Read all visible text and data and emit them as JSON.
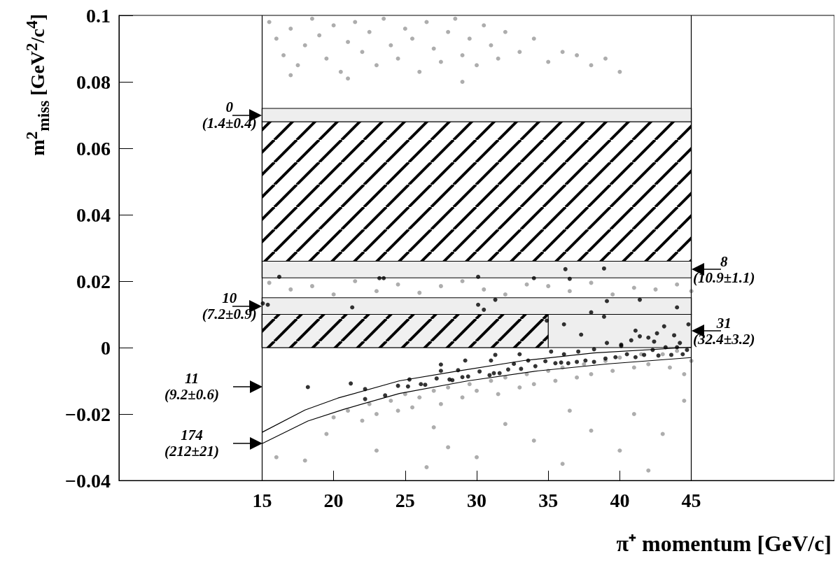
{
  "chart_data": {
    "type": "scatter",
    "xlabel": "π⁺ momentum [GeV/c]",
    "ylabel": "m$^{2}$$_{miss}$ [GeV$^{2}$/c$^{4}$]",
    "xlim": [
      5,
      55
    ],
    "xticks": [
      15,
      20,
      25,
      30,
      35,
      40,
      45
    ],
    "ylim": [
      -0.04,
      0.1
    ],
    "yticks": [
      {
        "value": -0.04,
        "label": "−0.04"
      },
      {
        "value": -0.02,
        "label": "−0.02"
      },
      0,
      0.02,
      0.04,
      0.06,
      0.08,
      0.1
    ],
    "grid": false,
    "series": [
      {
        "type": "scatter",
        "marker": "circle",
        "color": "#999999",
        "x": [
          15.5,
          16,
          16.5,
          17,
          17.5,
          18,
          18.5,
          19,
          19.5,
          20,
          20.5,
          21,
          21.5,
          22,
          22.5,
          23,
          23.5,
          24,
          24.5,
          25,
          25.5,
          26,
          26.5,
          27,
          27.5,
          28,
          28.5,
          29,
          29.5,
          30,
          30.5,
          31,
          31.5,
          32,
          33,
          34,
          35,
          36,
          37,
          38,
          39,
          40,
          17,
          21,
          29,
          15.5,
          17,
          18.5,
          20,
          21.5,
          23,
          24.5,
          26,
          27.5,
          29,
          30.5,
          32,
          33.5,
          35,
          36.5,
          38,
          39.5,
          41,
          42.5,
          44,
          45,
          20,
          21,
          22,
          22.5,
          23,
          24,
          24.5,
          25,
          25.5,
          26,
          27,
          27.5,
          28,
          29,
          29.5,
          30,
          31,
          31.5,
          32,
          33,
          33.5,
          34,
          35,
          35.5,
          36,
          37,
          37.5,
          38,
          39,
          39.5,
          40,
          41,
          41.5,
          42,
          43,
          43.5,
          44,
          44.5,
          45,
          16,
          18,
          19.5,
          23,
          26.5,
          28,
          30,
          32,
          34,
          36,
          38,
          40,
          41,
          42,
          43,
          44.5,
          27,
          36.5
        ],
        "values": [
          0.098,
          0.093,
          0.088,
          0.096,
          0.085,
          0.091,
          0.099,
          0.094,
          0.087,
          0.097,
          0.083,
          0.092,
          0.098,
          0.089,
          0.095,
          0.085,
          0.099,
          0.091,
          0.087,
          0.096,
          0.093,
          0.083,
          0.098,
          0.09,
          0.086,
          0.095,
          0.099,
          0.088,
          0.093,
          0.085,
          0.097,
          0.091,
          0.087,
          0.095,
          0.089,
          0.093,
          0.086,
          0.089,
          0.088,
          0.085,
          0.087,
          0.083,
          0.082,
          0.081,
          0.08,
          0.0195,
          0.0175,
          0.0185,
          0.016,
          0.02,
          0.017,
          0.019,
          0.0165,
          0.0185,
          0.02,
          0.0175,
          0.016,
          0.019,
          0.0185,
          0.017,
          0.0195,
          0.016,
          0.018,
          0.0175,
          0.019,
          0.017,
          -0.021,
          -0.019,
          -0.022,
          -0.017,
          -0.02,
          -0.016,
          -0.019,
          -0.014,
          -0.018,
          -0.015,
          -0.013,
          -0.017,
          -0.012,
          -0.015,
          -0.011,
          -0.013,
          -0.01,
          -0.014,
          -0.009,
          -0.012,
          -0.008,
          -0.011,
          -0.007,
          -0.01,
          -0.006,
          -0.009,
          -0.005,
          -0.008,
          -0.004,
          -0.007,
          -0.003,
          -0.006,
          -0.002,
          -0.005,
          -0.002,
          -0.006,
          -0.001,
          -0.008,
          -0.004,
          -0.033,
          -0.034,
          -0.026,
          -0.031,
          -0.036,
          -0.03,
          -0.033,
          -0.023,
          -0.028,
          -0.035,
          -0.025,
          -0.031,
          -0.02,
          -0.037,
          -0.026,
          -0.016,
          -0.024,
          -0.019
        ]
      },
      {
        "type": "scatter",
        "marker": "circle",
        "color": "#000000",
        "x": [
          16.2,
          23.2,
          23.5,
          30.1,
          34,
          36.2,
          36.5,
          38.9,
          15.05,
          15.4,
          21.3,
          30.1,
          30.5,
          31.3,
          39.1,
          41.4,
          44,
          38,
          34.9,
          36.1,
          37.3,
          38.9,
          43.1,
          44.8,
          41.1,
          41.4,
          42.6,
          43.8,
          42,
          40.8,
          39.1,
          40.1,
          42.4,
          44.2,
          18.2,
          21.2,
          22.2,
          22.2,
          23.6,
          24.5,
          25.2,
          25.3,
          26.1,
          26.4,
          27.2,
          27.5,
          27.5,
          28.1,
          28.3,
          28.7,
          29,
          29.2,
          29.4,
          30.2,
          30.9,
          31.2,
          31.6,
          31,
          31.3,
          32.2,
          32.6,
          33,
          33.1,
          33.6,
          34.1,
          34.8,
          35.2,
          35.5,
          35.9,
          36.1,
          36.4,
          37.1,
          37,
          37.6,
          38.2,
          38.2,
          39,
          39.7,
          40.1,
          40.5,
          41.1,
          41.7,
          42.3,
          42.7,
          43.2,
          43.6,
          44,
          44.4,
          44.7
        ],
        "values": [
          0.0213,
          0.0209,
          0.0209,
          0.0213,
          0.0209,
          0.0236,
          0.0207,
          0.0238,
          0.0133,
          0.0129,
          0.0121,
          0.0129,
          0.0114,
          0.0144,
          0.014,
          0.0144,
          0.0121,
          0.0106,
          0.0081,
          0.007,
          0.0039,
          0.0093,
          0.0064,
          0.007,
          0.0051,
          0.0034,
          0.0043,
          0.0037,
          0.003,
          0.0022,
          0.0014,
          0.0009,
          0.0018,
          0.0014,
          -0.0119,
          -0.0108,
          -0.0125,
          -0.0155,
          -0.0144,
          -0.0115,
          -0.0117,
          -0.0096,
          -0.011,
          -0.0112,
          -0.0093,
          -0.007,
          -0.0051,
          -0.0096,
          -0.0098,
          -0.0068,
          -0.0089,
          -0.0039,
          -0.0087,
          -0.0072,
          -0.0083,
          -0.0077,
          -0.0077,
          -0.0039,
          -0.0022,
          -0.0066,
          -0.0049,
          -0.002,
          -0.0064,
          -0.0039,
          -0.0056,
          -0.0041,
          -0.0012,
          -0.0047,
          -0.0045,
          -0.002,
          -0.0047,
          -0.0012,
          -0.0043,
          -0.0039,
          -0.0043,
          -0.0005,
          -0.0033,
          -0.0029,
          0.0005,
          -0.002,
          -0.0029,
          -0.0022,
          -0.0007,
          -0.0024,
          0.0001,
          -0.0022,
          0.0001,
          -0.002,
          -0.0007
        ]
      },
      {
        "type": "line",
        "marker": "none",
        "color": "#000000",
        "x": [
          15,
          18,
          20.3,
          24.6,
          28.5,
          33.3,
          38.2,
          45
        ],
        "values": [
          -0.0255,
          -0.0188,
          -0.0152,
          -0.01,
          -0.0072,
          -0.0039,
          -0.0016,
          0.0001
        ]
      },
      {
        "type": "line",
        "marker": "none",
        "color": "#000000",
        "x": [
          15,
          18.2,
          20.7,
          24.6,
          29.4,
          34.3,
          39.2,
          45
        ],
        "values": [
          -0.0289,
          -0.0221,
          -0.0186,
          -0.0138,
          -0.01,
          -0.007,
          -0.0049,
          -0.003
        ]
      },
      {
        "type": "area",
        "color": "#000000",
        "x": [
          15,
          35
        ],
        "values": [
          0.01,
          0.01
        ]
      }
    ],
    "bands": [
      {
        "axis": "y",
        "from": 0.026,
        "to": 0.068,
        "color": "#000000"
      },
      {
        "axis": "y",
        "from": 0.068,
        "to": 0.072,
        "label": "0\n(1.4±0.4)",
        "color": "#eeeeee"
      },
      {
        "axis": "y",
        "from": 0.021,
        "to": 0.026,
        "label": "8\n(10.9±1.1)",
        "color": "#eeeeee"
      },
      {
        "axis": "y",
        "from": 0.01,
        "to": 0.015,
        "label": "10\n(7.2±0.9)",
        "color": "#eeeeee"
      },
      {
        "axis": "y",
        "from": 0,
        "to": 0.01,
        "label": "31\n(32.4±3.2)",
        "color": "#eeeeee"
      }
    ],
    "ref_lines": [
      {
        "axis": "x",
        "value": 15
      },
      {
        "axis": "x",
        "value": 45
      }
    ],
    "annotations": [
      "11\n(9.2±0.6)",
      "174\n(212±21)"
    ]
  }
}
